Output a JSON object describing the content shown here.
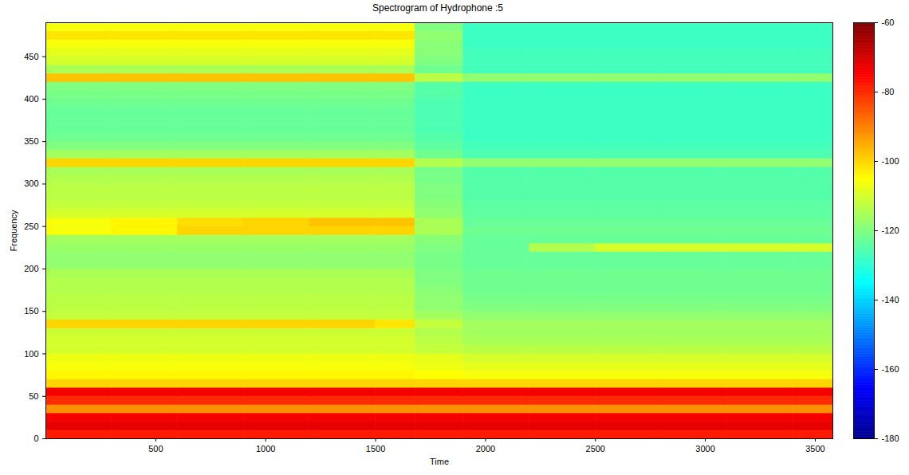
{
  "chart_data": {
    "type": "heatmap",
    "title": "Spectrogram of Hydrophone :5",
    "x_label": "Time",
    "y_label": "Frequency",
    "xlim": [
      0,
      3580
    ],
    "ylim": [
      0,
      490
    ],
    "xticks": [
      500,
      1000,
      1500,
      2000,
      2500,
      3000,
      3500
    ],
    "yticks": [
      0,
      50,
      100,
      150,
      200,
      250,
      300,
      350,
      400,
      450
    ],
    "time_edges": [
      0,
      300,
      600,
      900,
      1200,
      1500,
      1680,
      1900,
      2200,
      2500,
      2800,
      3100,
      3400,
      3580
    ],
    "frequency_edges": [
      0,
      10,
      20,
      30,
      40,
      50,
      60,
      70,
      80,
      90,
      100,
      110,
      120,
      130,
      140,
      150,
      160,
      170,
      180,
      190,
      200,
      210,
      220,
      230,
      240,
      250,
      260,
      270,
      280,
      290,
      300,
      310,
      320,
      330,
      340,
      350,
      360,
      370,
      380,
      390,
      400,
      410,
      420,
      430,
      440,
      450,
      460,
      470,
      480,
      490
    ],
    "values": [
      [
        -78,
        -78,
        -78,
        -78,
        -78,
        -78,
        -78,
        -78,
        -78,
        -78,
        -78,
        -78,
        -78
      ],
      [
        -72,
        -72,
        -72,
        -72,
        -72,
        -72,
        -72,
        -72,
        -72,
        -72,
        -72,
        -72,
        -72
      ],
      [
        -74,
        -74,
        -74,
        -74,
        -74,
        -74,
        -74,
        -74,
        -74,
        -74,
        -74,
        -74,
        -74
      ],
      [
        -92,
        -92,
        -92,
        -92,
        -92,
        -92,
        -92,
        -92,
        -92,
        -92,
        -92,
        -92,
        -92
      ],
      [
        -80,
        -80,
        -80,
        -80,
        -80,
        -80,
        -80,
        -80,
        -80,
        -80,
        -80,
        -80,
        -80
      ],
      [
        -74,
        -74,
        -74,
        -74,
        -74,
        -74,
        -74,
        -74,
        -74,
        -74,
        -74,
        -74,
        -74
      ],
      [
        -100,
        -100,
        -100,
        -100,
        -100,
        -100,
        -100,
        -100,
        -100,
        -100,
        -100,
        -100,
        -100
      ],
      [
        -104,
        -104,
        -104,
        -104,
        -104,
        -104,
        -105,
        -106,
        -106,
        -106,
        -106,
        -106,
        -106
      ],
      [
        -106,
        -106,
        -106,
        -106,
        -106,
        -106,
        -107,
        -108,
        -108,
        -108,
        -108,
        -108,
        -108
      ],
      [
        -107,
        -107,
        -107,
        -107,
        -107,
        -107,
        -108,
        -110,
        -110,
        -110,
        -110,
        -110,
        -110
      ],
      [
        -110,
        -110,
        -110,
        -110,
        -110,
        -110,
        -112,
        -113,
        -113,
        -113,
        -113,
        -113,
        -113
      ],
      [
        -110,
        -110,
        -110,
        -110,
        -110,
        -110,
        -113,
        -115,
        -115,
        -115,
        -115,
        -115,
        -115
      ],
      [
        -111,
        -111,
        -111,
        -111,
        -111,
        -111,
        -114,
        -116,
        -116,
        -116,
        -116,
        -116,
        -116
      ],
      [
        -100,
        -100,
        -100,
        -100,
        -100,
        -102,
        -112,
        -116,
        -116,
        -116,
        -116,
        -116,
        -116
      ],
      [
        -112,
        -112,
        -112,
        -112,
        -112,
        -112,
        -116,
        -118,
        -118,
        -118,
        -118,
        -118,
        -118
      ],
      [
        -113,
        -113,
        -113,
        -113,
        -113,
        -113,
        -118,
        -120,
        -120,
        -120,
        -120,
        -120,
        -120
      ],
      [
        -113,
        -113,
        -113,
        -113,
        -113,
        -113,
        -118,
        -121,
        -121,
        -121,
        -121,
        -121,
        -121
      ],
      [
        -114,
        -114,
        -114,
        -114,
        -114,
        -114,
        -119,
        -122,
        -122,
        -122,
        -122,
        -122,
        -122
      ],
      [
        -114,
        -114,
        -114,
        -114,
        -114,
        -114,
        -120,
        -122,
        -122,
        -122,
        -122,
        -122,
        -122
      ],
      [
        -115,
        -115,
        -115,
        -115,
        -115,
        -115,
        -120,
        -122,
        -122,
        -122,
        -122,
        -122,
        -122
      ],
      [
        -118,
        -118,
        -118,
        -118,
        -118,
        -118,
        -121,
        -123,
        -123,
        -123,
        -123,
        -123,
        -123
      ],
      [
        -118,
        -118,
        -118,
        -118,
        -118,
        -118,
        -121,
        -123,
        -123,
        -123,
        -123,
        -123,
        -123
      ],
      [
        -117,
        -117,
        -117,
        -117,
        -117,
        -117,
        -120,
        -123,
        -114,
        -110,
        -110,
        -110,
        -110
      ],
      [
        -116,
        -116,
        -116,
        -116,
        -116,
        -116,
        -119,
        -123,
        -123,
        -123,
        -123,
        -123,
        -123
      ],
      [
        -106,
        -104,
        -100,
        -100,
        -100,
        -100,
        -115,
        -122,
        -122,
        -122,
        -122,
        -122,
        -122
      ],
      [
        -106,
        -104,
        -101,
        -100,
        -98,
        -98,
        -115,
        -123,
        -123,
        -123,
        -123,
        -123,
        -123
      ],
      [
        -110,
        -110,
        -110,
        -110,
        -110,
        -110,
        -118,
        -124,
        -124,
        -124,
        -124,
        -124,
        -124
      ],
      [
        -112,
        -112,
        -112,
        -112,
        -112,
        -112,
        -119,
        -124,
        -124,
        -124,
        -124,
        -124,
        -124
      ],
      [
        -113,
        -113,
        -113,
        -113,
        -113,
        -113,
        -120,
        -125,
        -125,
        -125,
        -125,
        -125,
        -125
      ],
      [
        -113,
        -113,
        -113,
        -113,
        -113,
        -113,
        -120,
        -125,
        -125,
        -125,
        -125,
        -125,
        -125
      ],
      [
        -114,
        -114,
        -114,
        -114,
        -114,
        -114,
        -121,
        -125,
        -125,
        -125,
        -125,
        -125,
        -125
      ],
      [
        -115,
        -115,
        -115,
        -115,
        -115,
        -115,
        -121,
        -125,
        -125,
        -125,
        -125,
        -125,
        -125
      ],
      [
        -100,
        -100,
        -100,
        -100,
        -100,
        -100,
        -114,
        -118,
        -118,
        -118,
        -118,
        -118,
        -118
      ],
      [
        -116,
        -116,
        -116,
        -116,
        -116,
        -116,
        -122,
        -126,
        -126,
        -126,
        -126,
        -126,
        -126
      ],
      [
        -120,
        -120,
        -120,
        -120,
        -120,
        -120,
        -124,
        -127,
        -127,
        -127,
        -127,
        -127,
        -127
      ],
      [
        -122,
        -122,
        -122,
        -122,
        -122,
        -122,
        -125,
        -128,
        -128,
        -128,
        -128,
        -128,
        -128
      ],
      [
        -123,
        -123,
        -123,
        -123,
        -123,
        -123,
        -126,
        -128,
        -128,
        -128,
        -128,
        -128,
        -128
      ],
      [
        -123,
        -123,
        -123,
        -123,
        -123,
        -123,
        -126,
        -128,
        -128,
        -128,
        -128,
        -128,
        -128
      ],
      [
        -123,
        -123,
        -123,
        -123,
        -123,
        -123,
        -126,
        -128,
        -128,
        -128,
        -128,
        -128,
        -128
      ],
      [
        -122,
        -122,
        -122,
        -122,
        -122,
        -122,
        -126,
        -128,
        -128,
        -128,
        -128,
        -128,
        -128
      ],
      [
        -121,
        -121,
        -121,
        -121,
        -121,
        -121,
        -125,
        -128,
        -128,
        -128,
        -128,
        -128,
        -128
      ],
      [
        -120,
        -120,
        -120,
        -120,
        -120,
        -120,
        -125,
        -128,
        -128,
        -128,
        -128,
        -128,
        -128
      ],
      [
        -98,
        -98,
        -98,
        -98,
        -98,
        -98,
        -113,
        -118,
        -118,
        -118,
        -118,
        -118,
        -118
      ],
      [
        -115,
        -115,
        -115,
        -115,
        -115,
        -115,
        -122,
        -127,
        -127,
        -127,
        -127,
        -127,
        -127
      ],
      [
        -110,
        -110,
        -110,
        -110,
        -110,
        -110,
        -120,
        -127,
        -127,
        -127,
        -127,
        -127,
        -127
      ],
      [
        -108,
        -108,
        -108,
        -108,
        -108,
        -108,
        -119,
        -127,
        -127,
        -127,
        -127,
        -127,
        -127
      ],
      [
        -106,
        -106,
        -106,
        -106,
        -106,
        -106,
        -119,
        -128,
        -128,
        -128,
        -128,
        -128,
        -128
      ],
      [
        -102,
        -102,
        -102,
        -102,
        -102,
        -102,
        -118,
        -128,
        -128,
        -128,
        -128,
        -128,
        -128
      ],
      [
        -106,
        -106,
        -106,
        -106,
        -106,
        -106,
        -120,
        -128,
        -128,
        -128,
        -128,
        -128,
        -128
      ]
    ],
    "colorbar": {
      "range": [
        -180,
        -60
      ],
      "ticks": [
        -60,
        -80,
        -100,
        -120,
        -140,
        -160,
        -180
      ]
    }
  }
}
